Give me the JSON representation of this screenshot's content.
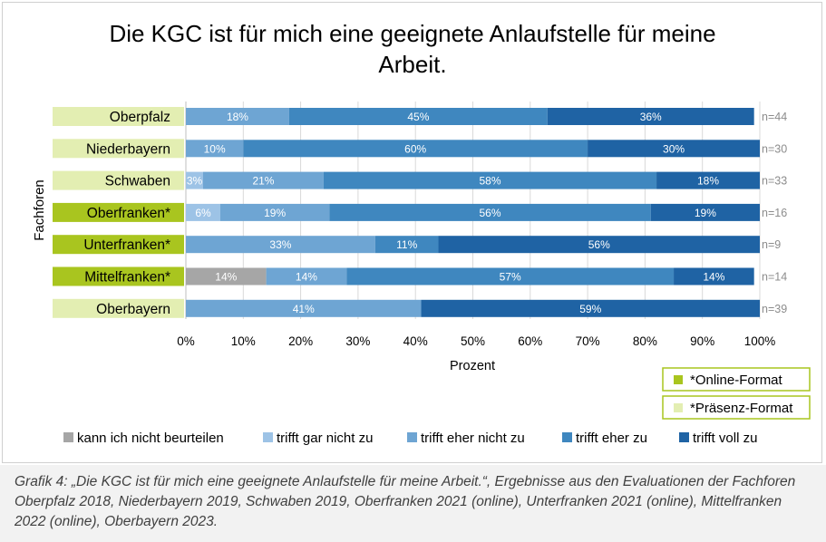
{
  "title_line1": "Die KGC ist für mich eine geeignete Anlaufstelle für meine",
  "title_line2": "Arbeit.",
  "caption": "Grafik 4: „Die KGC ist für mich eine geeignete Anlaufstelle für meine Arbeit.“, Ergebnisse aus den Evaluationen der Fachforen Oberpfalz 2018, Niederbayern 2019, Schwaben 2019, Oberfranken 2021 (online), Unterfranken 2021 (online), Mittelfranken 2022 (online), Oberbayern 2023.",
  "format_legend": [
    {
      "label": "*Online-Format",
      "color": "#a9c51f"
    },
    {
      "label": "*Präsenz-Format",
      "color": "#e3eeb2"
    }
  ],
  "chart_data": {
    "type": "bar",
    "orientation": "horizontal",
    "stacked": true,
    "percent": true,
    "xlabel": "Prozent",
    "ylabel": "Fachforen",
    "xlim": [
      0,
      100
    ],
    "xticks": [
      "0%",
      "10%",
      "20%",
      "30%",
      "40%",
      "50%",
      "60%",
      "70%",
      "80%",
      "90%",
      "100%"
    ],
    "categories": [
      "Oberpfalz",
      "Niederbayern",
      "Schwaben",
      "Oberfranken*",
      "Unterfranken*",
      "Mittelfranken*",
      "Oberbayern"
    ],
    "category_format": [
      "Präsenz",
      "Präsenz",
      "Präsenz",
      "Online",
      "Online",
      "Online",
      "Präsenz"
    ],
    "n_labels": [
      "n=44",
      "n=30",
      "n=33",
      "n=16",
      "n=9",
      "n=14",
      "n=39"
    ],
    "series": [
      {
        "name": "kann ich nicht beurteilen",
        "color": "#a6a6a6",
        "values": [
          0,
          0,
          0,
          0,
          0,
          14,
          0
        ]
      },
      {
        "name": "trifft gar nicht zu",
        "color": "#9dc3e6",
        "values": [
          0,
          0,
          3,
          6,
          0,
          0,
          0
        ]
      },
      {
        "name": "trifft eher nicht zu",
        "color": "#6ea5d3",
        "values": [
          18,
          10,
          21,
          19,
          33,
          14,
          41
        ]
      },
      {
        "name": "trifft eher zu",
        "color": "#3f87bf",
        "values": [
          45,
          60,
          58,
          56,
          11,
          57,
          0
        ]
      },
      {
        "name": "trifft voll zu",
        "color": "#1f63a4",
        "values": [
          36,
          30,
          18,
          19,
          56,
          14,
          59
        ]
      }
    ],
    "grid": true,
    "legend_position": "bottom"
  }
}
